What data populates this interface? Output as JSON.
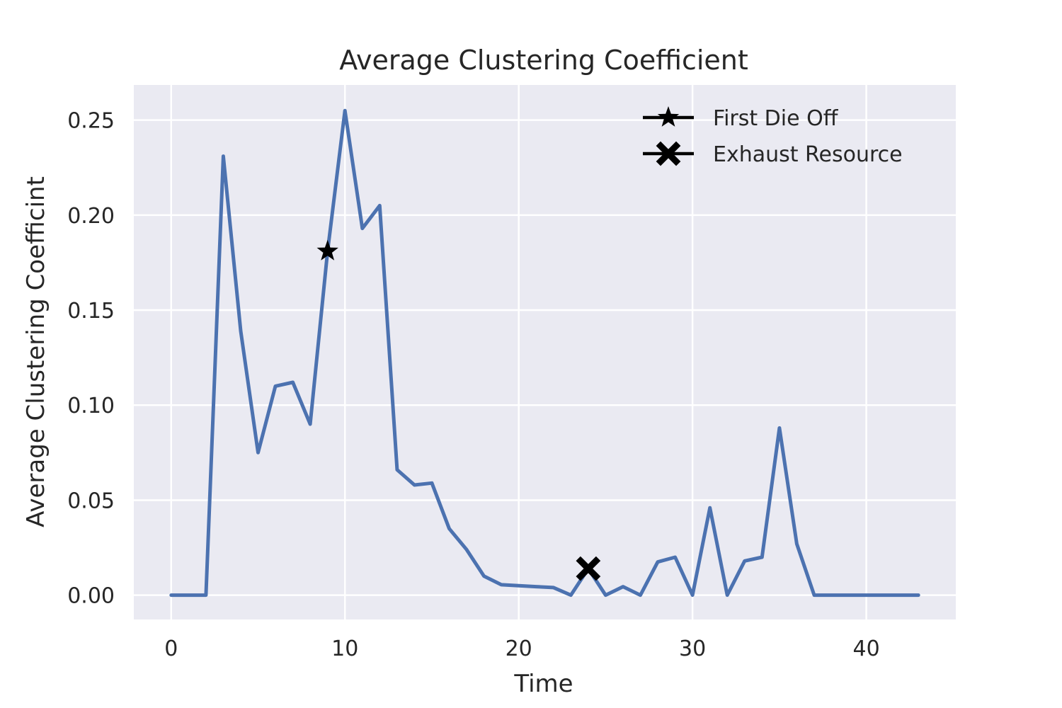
{
  "chart_data": {
    "type": "line",
    "title": "Average Clustering Coefficient",
    "xlabel": "Time",
    "ylabel": "Average Clustering Coefficint",
    "xlim": [
      -2.15,
      45.15
    ],
    "ylim": [
      -0.0128,
      0.2685
    ],
    "xticks": [
      0,
      10,
      20,
      30,
      40
    ],
    "yticks": [
      0.0,
      0.05,
      0.1,
      0.15,
      0.2,
      0.25
    ],
    "ytick_labels": [
      "0.00",
      "0.05",
      "0.10",
      "0.15",
      "0.20",
      "0.25"
    ],
    "grid": true,
    "legend_position": "top-right",
    "colors": {
      "line": "#4c72b0",
      "background": "#eaeaf2",
      "grid": "#ffffff",
      "marker": "#000000"
    },
    "series": [
      {
        "x": [
          0,
          1,
          2,
          3,
          4,
          5,
          6,
          7,
          8,
          9,
          10,
          11,
          12,
          13,
          14,
          15,
          16,
          17,
          18,
          19,
          20,
          21,
          22,
          23,
          24,
          25,
          26,
          27,
          28,
          29,
          30,
          31,
          32,
          33,
          34,
          35,
          36,
          37,
          38,
          39,
          40,
          41,
          42,
          43
        ],
        "values": [
          0,
          0,
          0,
          0.231,
          0.139,
          0.075,
          0.11,
          0.112,
          0.09,
          0.181,
          0.255,
          0.193,
          0.205,
          0.066,
          0.058,
          0.059,
          0.035,
          0.024,
          0.01,
          0.0055,
          0.005,
          0.0045,
          0.004,
          0,
          0.014,
          0,
          0.0045,
          0,
          0.0175,
          0.02,
          0,
          0.046,
          0,
          0.018,
          0.02,
          0.088,
          0.027,
          0,
          0,
          0,
          0,
          0,
          0,
          0
        ]
      }
    ],
    "markers": [
      {
        "name": "First Die Off",
        "symbol": "star",
        "x": 9,
        "y": 0.181
      },
      {
        "name": "Exhaust Resource",
        "symbol": "x",
        "x": 24,
        "y": 0.014
      }
    ]
  }
}
